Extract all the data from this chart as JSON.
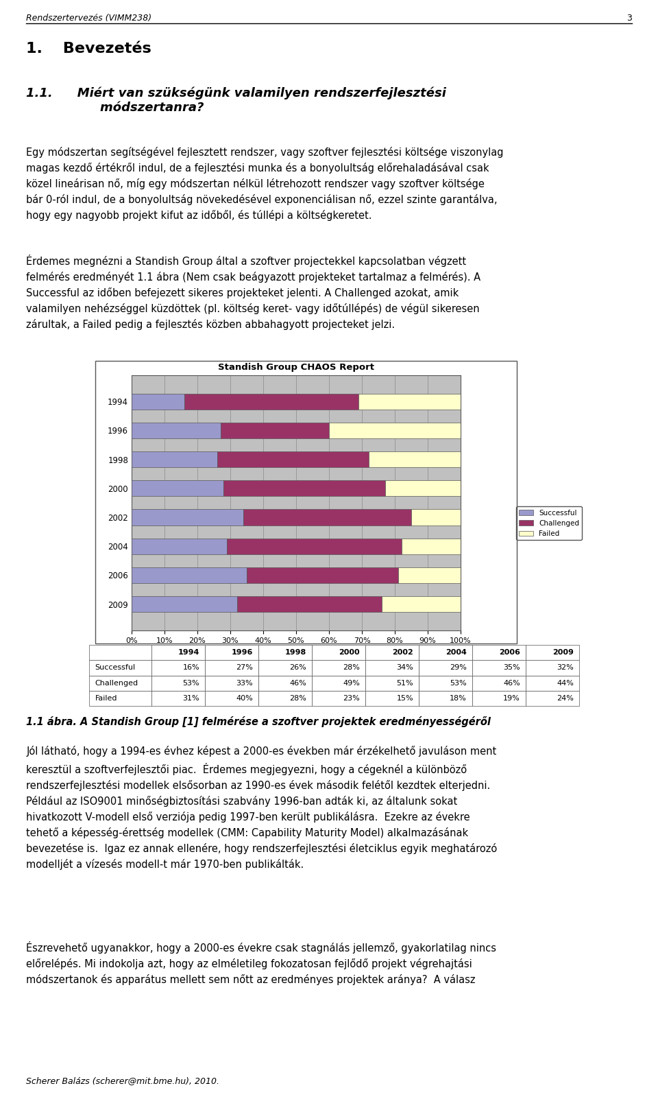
{
  "title": "Standish Group CHAOS Report",
  "years": [
    2009,
    2006,
    2004,
    2002,
    2000,
    1998,
    1996,
    1994
  ],
  "successful": [
    32,
    35,
    29,
    34,
    28,
    26,
    27,
    16
  ],
  "challenged": [
    44,
    46,
    53,
    51,
    49,
    46,
    33,
    53
  ],
  "failed": [
    24,
    19,
    18,
    15,
    23,
    28,
    40,
    31
  ],
  "color_successful": "#9999CC",
  "color_challenged": "#993366",
  "color_failed": "#FFFFCC",
  "table_years": [
    1994,
    1996,
    1998,
    2000,
    2002,
    2004,
    2006,
    2009
  ],
  "table_successful": [
    "16%",
    "27%",
    "26%",
    "28%",
    "34%",
    "29%",
    "35%",
    "32%"
  ],
  "table_challenged": [
    "53%",
    "33%",
    "46%",
    "49%",
    "51%",
    "53%",
    "46%",
    "44%"
  ],
  "table_failed": [
    "31%",
    "40%",
    "28%",
    "23%",
    "15%",
    "18%",
    "19%",
    "24%"
  ],
  "figure_width": 9.6,
  "figure_height": 16.18,
  "page_title": "Rendszertervezés (VIMM238)",
  "page_number": "3",
  "header_fontsize": 9,
  "section1_fontsize": 16,
  "section11_fontsize": 13,
  "body_fontsize": 10.5,
  "caption_fontsize": 10.5
}
